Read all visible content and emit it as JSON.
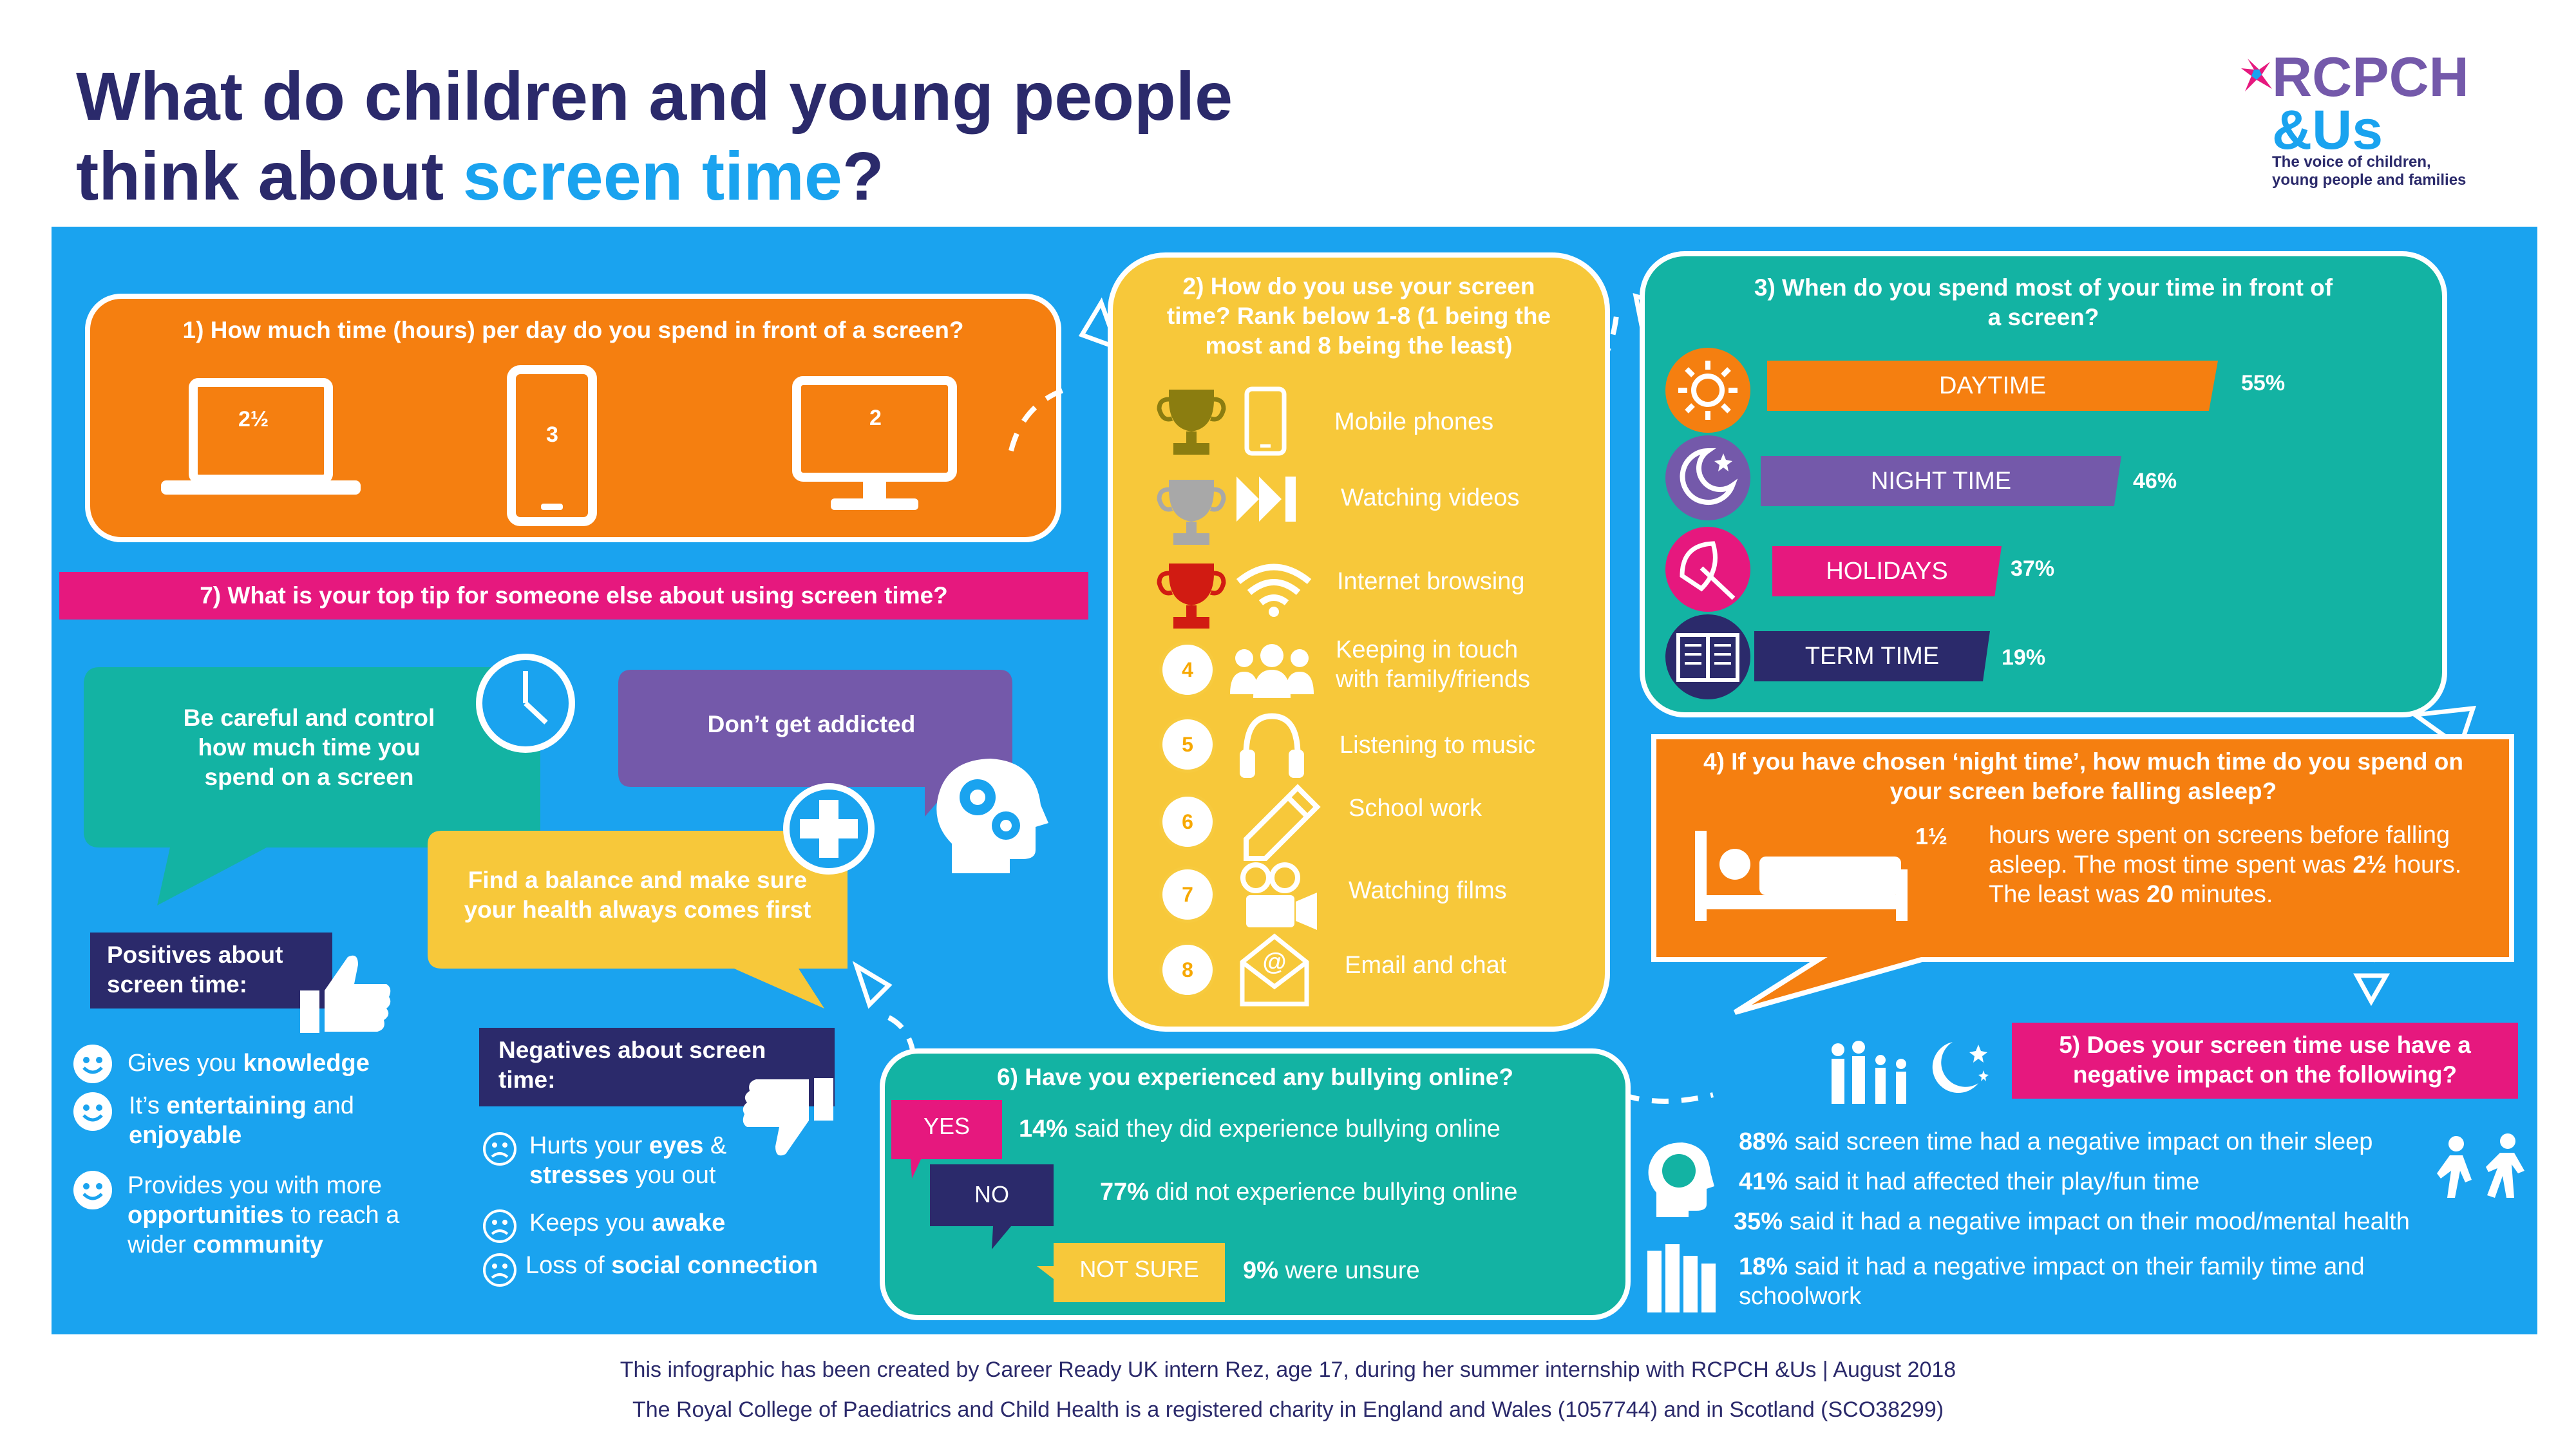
{
  "header": {
    "title_line1": "What do children and young people",
    "title_line2_a": "think about ",
    "title_line2_b": "screen time",
    "title_line2_c": "?",
    "logo": {
      "mark": "RCPCH",
      "sub": "&Us",
      "tagline_1": "The voice of children,",
      "tagline_2": "young people and families"
    }
  },
  "colors": {
    "blue": "#1aa3ef",
    "navy": "#2b2a6b",
    "orange": "#f57f10",
    "yellow": "#f7c83a",
    "teal": "#13b3a3",
    "magenta": "#e6187e",
    "purple": "#7459aa"
  },
  "q1": {
    "question": "1) How much time (hours) per day do you spend in front of a screen?",
    "laptop": "2½",
    "phone": "3",
    "monitor": "2"
  },
  "q2": {
    "question_1": "2) How do you use your screen",
    "question_2": "time? Rank below 1-8 (1 being the",
    "question_3": "most and 8 being the least)",
    "items": [
      {
        "rank": "1",
        "label": "Mobile phones",
        "icon": "mobile-phone-icon"
      },
      {
        "rank": "2",
        "label": "Watching videos",
        "icon": "fast-forward-icon"
      },
      {
        "rank": "3",
        "label": "Internet browsing",
        "icon": "wifi-icon"
      },
      {
        "rank": "4",
        "label_1": "Keeping in touch",
        "label_2": "with family/friends",
        "icon": "people-icon"
      },
      {
        "rank": "5",
        "label": "Listening to music",
        "icon": "headphones-icon"
      },
      {
        "rank": "6",
        "label": "School work",
        "icon": "pencil-icon"
      },
      {
        "rank": "7",
        "label": "Watching films",
        "icon": "film-camera-icon"
      },
      {
        "rank": "8",
        "label": "Email and chat",
        "icon": "envelope-icon"
      }
    ]
  },
  "q3": {
    "question_1": "3) When do you spend most of your time in front of",
    "question_2": "a screen?",
    "rows": [
      {
        "label": "DAYTIME",
        "value": "55%",
        "pct": 55,
        "color": "#f57f10",
        "icon": "sun-icon"
      },
      {
        "label": "NIGHT TIME",
        "value": "46%",
        "pct": 46,
        "color": "#7459aa",
        "icon": "moon-icon"
      },
      {
        "label": "HOLIDAYS",
        "value": "37%",
        "pct": 37,
        "color": "#e6187e",
        "icon": "umbrella-icon"
      },
      {
        "label": "TERM TIME",
        "value": "19%",
        "pct": 19,
        "color": "#2b2a6b",
        "icon": "book-icon"
      }
    ]
  },
  "q4": {
    "question_1": "4) If you have chosen ‘night time’, how much time do you spend on",
    "question_2": "your screen before falling asleep?",
    "value": "1½",
    "text_1": "hours were spent on screens before falling",
    "text_2a": "asleep. The most time spent was ",
    "text_2b": "2½",
    "text_2c": " hours.",
    "text_3a": "The least was ",
    "text_3b": "20",
    "text_3c": " minutes."
  },
  "q5": {
    "question_1": "5) Does your screen time use have a",
    "question_2": "negative impact on the following?",
    "items": [
      {
        "pct": "88%",
        "text": " said screen time had a negative impact on their sleep"
      },
      {
        "pct": "41%",
        "text": " said it had affected their play/fun time"
      },
      {
        "pct": "35%",
        "text": " said it had a negative impact on their mood/mental health"
      },
      {
        "pct": "18%",
        "text_1": " said it had a negative impact on their family time and",
        "text_2": "schoolwork"
      }
    ]
  },
  "q6": {
    "question": "6) Have you experienced any bullying online?",
    "yes_tag": "YES",
    "yes_pct": "14%",
    "yes_text": " said they did experience bullying online",
    "no_tag": "NO",
    "no_pct": "77%",
    "no_text": " did not experience bullying online",
    "unsure_tag": "NOT SURE",
    "unsure_pct": "9%",
    "unsure_text": " were unsure"
  },
  "q7": {
    "question": "7) What is your top tip for someone else about using screen time?",
    "tip1_1": "Be careful and control",
    "tip1_2": "how much time you",
    "tip1_3": "spend on a screen",
    "tip2": "Don’t get addicted",
    "tip3_1": "Find a balance and make sure",
    "tip3_2": "your health always comes first"
  },
  "positives": {
    "title_1": "Positives about",
    "title_2": "screen time:",
    "i1_a": "Gives you ",
    "i1_b": "knowledge",
    "i2_a": "It’s ",
    "i2_b": "entertaining",
    "i2_c": " and",
    "i2_d": "enjoyable",
    "i3_a": "Provides you with more",
    "i3_b": "opportunities",
    "i3_c": " to reach a",
    "i3_d": "wider ",
    "i3_e": "community"
  },
  "negatives": {
    "title_1": "Negatives about screen",
    "title_2": "time:",
    "i1_a": "Hurts your ",
    "i1_b": "eyes",
    "i1_c": " &",
    "i1_d": "stresses",
    "i1_e": " you out",
    "i2_a": "Keeps you ",
    "i2_b": "awake",
    "i3_a": "Loss of ",
    "i3_b": "social connection"
  },
  "footer": {
    "line1": "This infographic has been created by Career Ready UK intern Rez, age 17, during her summer internship with RCPCH &Us | August 2018",
    "line2": "The Royal College of Paediatrics and Child Health is a registered charity in England and Wales (1057744) and in Scotland (SCO38299)"
  }
}
